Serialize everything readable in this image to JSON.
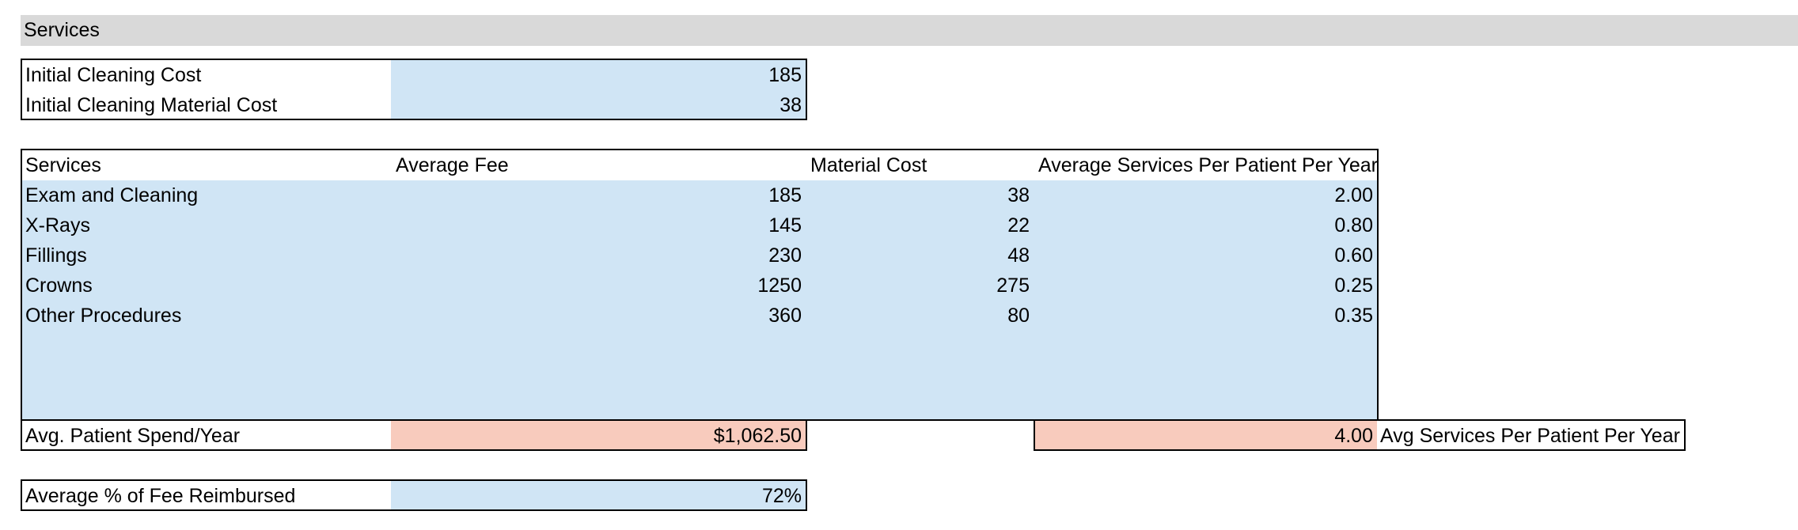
{
  "sheet_header": {
    "title": "Services"
  },
  "initial_cleaning": {
    "rows": [
      {
        "label": "Initial Cleaning Cost",
        "value": "185"
      },
      {
        "label": "Initial Cleaning Material Cost",
        "value": "38"
      }
    ]
  },
  "services_table": {
    "headers": {
      "service": "Services",
      "fee": "Average Fee",
      "material": "Material Cost",
      "per_year": "Average Services Per Patient Per Year"
    },
    "rows": [
      {
        "service": "Exam and Cleaning",
        "fee": "185",
        "material": "38",
        "per_year": "2.00"
      },
      {
        "service": "X-Rays",
        "fee": "145",
        "material": "22",
        "per_year": "0.80"
      },
      {
        "service": "Fillings",
        "fee": "230",
        "material": "48",
        "per_year": "0.60"
      },
      {
        "service": "Crowns",
        "fee": "1250",
        "material": "275",
        "per_year": "0.25"
      },
      {
        "service": "Other Procedures",
        "fee": "360",
        "material": "80",
        "per_year": "0.35"
      }
    ]
  },
  "summary": {
    "spend_label": "Avg. Patient Spend/Year",
    "spend_value": "$1,062.50",
    "services_value": "4.00",
    "services_label": "Avg Services Per Patient Per Year"
  },
  "reimbursement": {
    "label": "Average % of Fee Reimbursed",
    "value": "72%"
  },
  "colors": {
    "input_fill": "#d0e5f5",
    "output_fill": "#f8cbbd",
    "header_fill": "#d9d9d9"
  }
}
